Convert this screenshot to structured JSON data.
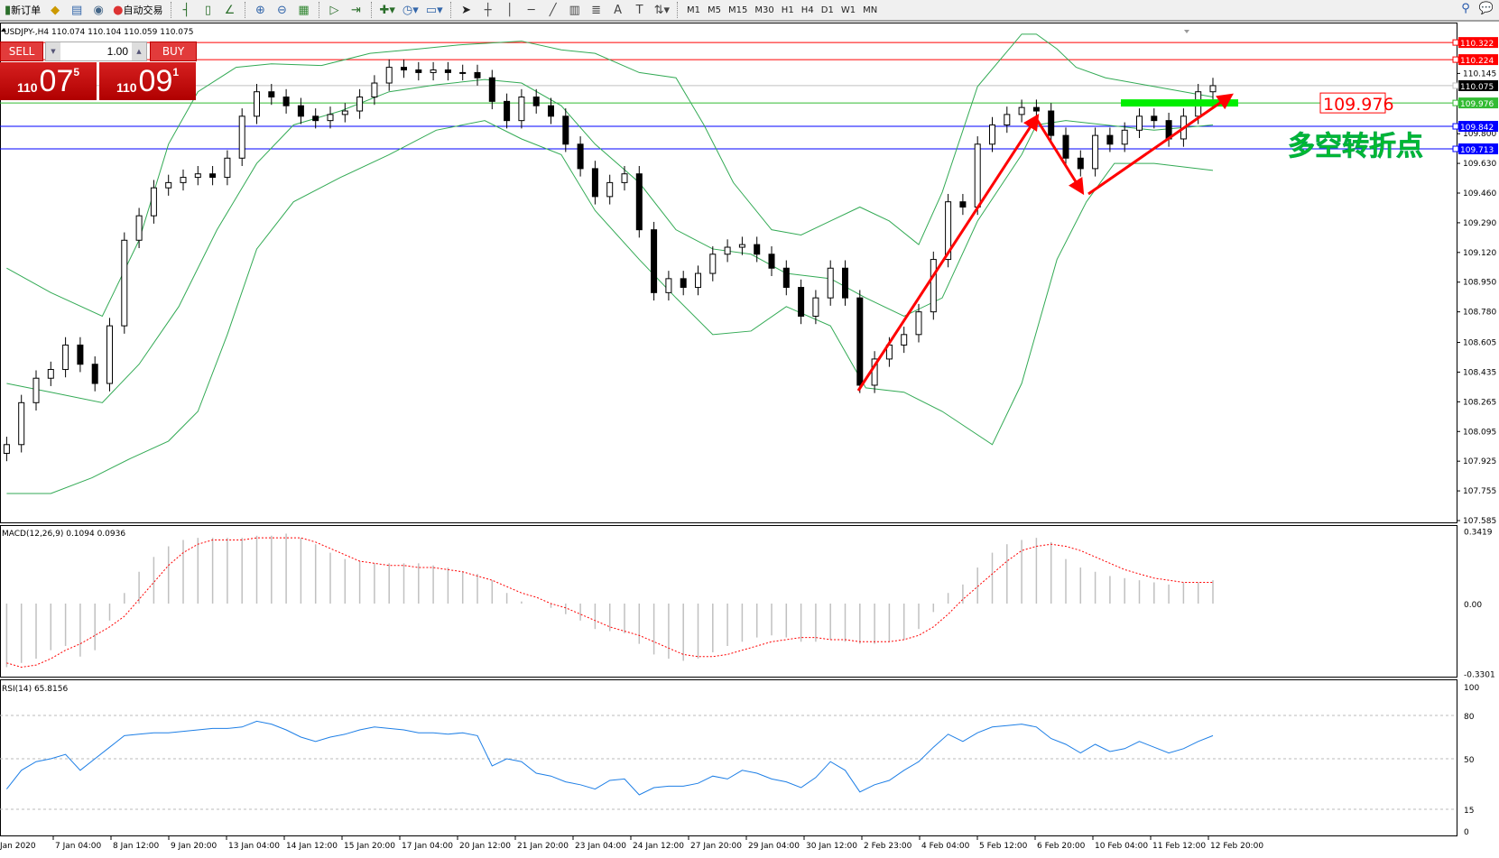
{
  "toolbar": {
    "new_order": "新订单",
    "auto_trading": "自动交易",
    "periods": [
      "M1",
      "M5",
      "M15",
      "M30",
      "H1",
      "H4",
      "D1",
      "W1",
      "MN"
    ],
    "icons": [
      "new-order-icon",
      "history-icon",
      "data-icon",
      "signal-icon",
      "auto-trading-icon",
      "bar-chart-icon",
      "candle-chart-icon",
      "line-chart-icon",
      "zoom-in-icon",
      "zoom-out-icon",
      "tile-icon",
      "autoscroll-icon",
      "shift-icon",
      "indicators-icon",
      "period-icon",
      "template-icon",
      "cursor-icon",
      "crosshair-icon",
      "vertical-line-icon",
      "horizontal-line-icon",
      "trendline-icon",
      "channel-icon",
      "fibonacci-icon",
      "text-icon",
      "label-icon",
      "arrows-icon",
      "search-icon",
      "chat-icon"
    ]
  },
  "chart_header": "USDJPY-,H4  110.074 110.104 110.059 110.075",
  "one_click": {
    "sell": "SELL",
    "buy": "BUY",
    "quantity": "1.00",
    "sell_price": {
      "big": "110",
      "main": "07",
      "pip": "5"
    },
    "buy_price": {
      "big": "110",
      "main": "09",
      "pip": "1"
    }
  },
  "annotation": {
    "price_label": "109.976",
    "text": "多空转折点",
    "text_color": "#00dd00",
    "arrow_color": "#ff0000",
    "zone_color": "#00ee00"
  },
  "chart_data": [
    {
      "type": "candlestick",
      "symbol": "USDJPY-",
      "timeframe": "H4",
      "price_ticks": [
        "110.145",
        "109.800",
        "109.630",
        "109.460",
        "109.290",
        "109.120",
        "108.950",
        "108.780",
        "108.605",
        "108.435",
        "108.265",
        "108.095",
        "107.925",
        "107.755",
        "107.585"
      ],
      "ylim": [
        107.585,
        110.42
      ],
      "hlines": [
        {
          "price": "110.322",
          "color": "#ff0000"
        },
        {
          "price": "110.224",
          "color": "#ff0000"
        },
        {
          "price": "110.075",
          "color": "#c0c0c0",
          "label_bg": "#000000"
        },
        {
          "price": "109.976",
          "color": "#33bb33"
        },
        {
          "price": "109.842",
          "color": "#0000ff"
        },
        {
          "price": "109.713",
          "color": "#0000ff"
        }
      ],
      "close": [
        108.02,
        108.26,
        108.4,
        108.45,
        108.59,
        108.48,
        108.37,
        108.7,
        109.19,
        109.33,
        109.49,
        109.52,
        109.55,
        109.57,
        109.55,
        109.66,
        109.9,
        110.04,
        110.01,
        109.96,
        109.9,
        109.875,
        109.91,
        109.93,
        110.01,
        110.09,
        110.18,
        110.165,
        110.15,
        110.165,
        110.15,
        110.15,
        110.12,
        109.985,
        109.875,
        110.01,
        109.96,
        109.9,
        109.74,
        109.6,
        109.44,
        109.52,
        109.57,
        109.25,
        108.89,
        108.97,
        108.92,
        109.0,
        109.11,
        109.15,
        109.165,
        109.11,
        109.03,
        108.92,
        108.755,
        108.86,
        109.03,
        108.86,
        108.36,
        108.51,
        108.59,
        108.65,
        108.78,
        109.08,
        109.41,
        109.38,
        109.74,
        109.85,
        109.91,
        109.95,
        109.93,
        109.79,
        109.66,
        109.6,
        109.79,
        109.74,
        109.82,
        109.9,
        109.875,
        109.77,
        109.9,
        110.04,
        110.075
      ],
      "bollinger": {
        "color": "#33aa55",
        "upper": [
          [
            0,
            109.03
          ],
          [
            3,
            108.89
          ],
          [
            6.5,
            108.755
          ],
          [
            9,
            109.19
          ],
          [
            11,
            109.74
          ],
          [
            13,
            110.04
          ],
          [
            15.6,
            110.18
          ],
          [
            18,
            110.2
          ],
          [
            21.4,
            110.19
          ],
          [
            24.7,
            110.26
          ],
          [
            28,
            110.285
          ],
          [
            31,
            110.31
          ],
          [
            35,
            110.33
          ],
          [
            37.7,
            110.28
          ],
          [
            40,
            110.26
          ],
          [
            43,
            110.15
          ],
          [
            45.5,
            110.12
          ],
          [
            47.4,
            109.85
          ],
          [
            49.4,
            109.52
          ],
          [
            52,
            109.25
          ],
          [
            54,
            109.22
          ],
          [
            56,
            109.3
          ],
          [
            58,
            109.38
          ],
          [
            60,
            109.3
          ],
          [
            62,
            109.165
          ],
          [
            63.6,
            109.465
          ],
          [
            66,
            110.07
          ],
          [
            69,
            110.37
          ],
          [
            70,
            110.37
          ],
          [
            71.4,
            110.285
          ],
          [
            72.7,
            110.18
          ],
          [
            74.7,
            110.12
          ],
          [
            78,
            110.07
          ],
          [
            82,
            110.01
          ]
        ],
        "middle": [
          [
            0,
            108.37
          ],
          [
            3,
            108.32
          ],
          [
            6.5,
            108.26
          ],
          [
            9,
            108.48
          ],
          [
            11.7,
            108.81
          ],
          [
            14.3,
            109.25
          ],
          [
            17,
            109.63
          ],
          [
            19.5,
            109.85
          ],
          [
            22.7,
            109.93
          ],
          [
            26,
            110.04
          ],
          [
            29.2,
            110.08
          ],
          [
            32.5,
            110.11
          ],
          [
            35,
            110.09
          ],
          [
            37.7,
            109.96
          ],
          [
            40,
            109.74
          ],
          [
            43,
            109.52
          ],
          [
            45.5,
            109.25
          ],
          [
            48,
            109.14
          ],
          [
            50.6,
            109.11
          ],
          [
            53,
            109.0
          ],
          [
            56,
            108.97
          ],
          [
            58.4,
            108.86
          ],
          [
            61,
            108.755
          ],
          [
            63.6,
            108.86
          ],
          [
            66,
            109.3
          ],
          [
            69,
            109.68
          ],
          [
            70,
            109.85
          ],
          [
            72,
            109.875
          ],
          [
            74.7,
            109.85
          ],
          [
            78,
            109.82
          ],
          [
            82,
            109.85
          ]
        ],
        "lower": [
          [
            0,
            107.74
          ],
          [
            3,
            107.74
          ],
          [
            5.8,
            107.83
          ],
          [
            8.4,
            107.94
          ],
          [
            11,
            108.04
          ],
          [
            13,
            108.21
          ],
          [
            15,
            108.65
          ],
          [
            17,
            109.14
          ],
          [
            19.5,
            109.41
          ],
          [
            22.7,
            109.55
          ],
          [
            26,
            109.68
          ],
          [
            29.2,
            109.82
          ],
          [
            32.5,
            109.875
          ],
          [
            35,
            109.77
          ],
          [
            37.7,
            109.68
          ],
          [
            40,
            109.36
          ],
          [
            43,
            109.08
          ],
          [
            45.5,
            108.86
          ],
          [
            48,
            108.65
          ],
          [
            50.6,
            108.67
          ],
          [
            53,
            108.81
          ],
          [
            56,
            108.7
          ],
          [
            58.4,
            108.345
          ],
          [
            61,
            108.32
          ],
          [
            63.6,
            108.21
          ],
          [
            67,
            108.02
          ],
          [
            69,
            108.37
          ],
          [
            71.4,
            109.08
          ],
          [
            73.4,
            109.41
          ],
          [
            75.3,
            109.63
          ],
          [
            78,
            109.63
          ],
          [
            82,
            109.59
          ]
        ]
      },
      "x_ticks": [
        "Jan 2020",
        "7 Jan 04:00",
        "8 Jan 12:00",
        "9 Jan 20:00",
        "13 Jan 04:00",
        "14 Jan 12:00",
        "15 Jan 20:00",
        "17 Jan 04:00",
        "20 Jan 12:00",
        "21 Jan 20:00",
        "23 Jan 04:00",
        "24 Jan 12:00",
        "27 Jan 20:00",
        "29 Jan 04:00",
        "30 Jan 12:00",
        "2 Feb 23:00",
        "4 Feb 04:00",
        "5 Feb 12:00",
        "6 Feb 20:00",
        "10 Feb 04:00",
        "11 Feb 12:00",
        "12 Feb 20:00"
      ]
    },
    {
      "type": "bar",
      "title": "MACD(12,26,9) 0.1094 0.0936",
      "y_ticks": [
        "0.3419",
        "0.00",
        "-0.3301"
      ],
      "ylim": [
        -0.3301,
        0.3419
      ],
      "hist_color": "#c0c0c0",
      "signal_color": "#ff0000",
      "histogram": [
        -0.3,
        -0.28,
        -0.26,
        -0.22,
        -0.2,
        -0.25,
        -0.22,
        -0.08,
        0.05,
        0.15,
        0.22,
        0.27,
        0.3,
        0.31,
        0.31,
        0.31,
        0.31,
        0.32,
        0.32,
        0.33,
        0.31,
        0.28,
        0.24,
        0.21,
        0.2,
        0.19,
        0.19,
        0.19,
        0.19,
        0.18,
        0.17,
        0.15,
        0.14,
        0.11,
        0.05,
        0.01,
        0.0,
        -0.02,
        -0.05,
        -0.08,
        -0.12,
        -0.13,
        -0.14,
        -0.19,
        -0.24,
        -0.26,
        -0.27,
        -0.26,
        -0.23,
        -0.2,
        -0.18,
        -0.16,
        -0.15,
        -0.16,
        -0.18,
        -0.18,
        -0.17,
        -0.18,
        -0.19,
        -0.19,
        -0.18,
        -0.17,
        -0.12,
        -0.04,
        0.05,
        0.09,
        0.17,
        0.24,
        0.28,
        0.3,
        0.31,
        0.29,
        0.21,
        0.17,
        0.15,
        0.13,
        0.12,
        0.11,
        0.1,
        0.09,
        0.1,
        0.1,
        0.11
      ],
      "signal": [
        -0.28,
        -0.3,
        -0.29,
        -0.26,
        -0.22,
        -0.19,
        -0.15,
        -0.11,
        -0.06,
        0.02,
        0.1,
        0.18,
        0.24,
        0.28,
        0.3,
        0.3,
        0.3,
        0.31,
        0.31,
        0.31,
        0.31,
        0.29,
        0.26,
        0.23,
        0.2,
        0.19,
        0.18,
        0.18,
        0.17,
        0.17,
        0.16,
        0.15,
        0.13,
        0.11,
        0.08,
        0.05,
        0.03,
        0.0,
        -0.02,
        -0.05,
        -0.08,
        -0.11,
        -0.13,
        -0.15,
        -0.18,
        -0.21,
        -0.24,
        -0.25,
        -0.25,
        -0.24,
        -0.22,
        -0.2,
        -0.18,
        -0.17,
        -0.16,
        -0.16,
        -0.17,
        -0.17,
        -0.18,
        -0.18,
        -0.18,
        -0.17,
        -0.15,
        -0.11,
        -0.05,
        0.02,
        0.08,
        0.14,
        0.2,
        0.25,
        0.27,
        0.28,
        0.27,
        0.25,
        0.22,
        0.19,
        0.16,
        0.14,
        0.12,
        0.11,
        0.1,
        0.1,
        0.1
      ]
    },
    {
      "type": "line",
      "title": "RSI(14) 65.8156",
      "y_ticks": [
        "100",
        "80",
        "50",
        "15",
        "0"
      ],
      "levels": [
        80,
        50,
        15
      ],
      "ylim": [
        0,
        100
      ],
      "color": "#1e7fe6",
      "values": [
        29,
        42,
        48,
        50,
        53,
        42,
        50,
        58,
        66,
        67,
        68,
        68,
        69,
        70,
        71,
        71,
        72,
        76,
        74,
        70,
        65,
        62,
        65,
        67,
        70,
        72,
        71,
        70,
        68,
        68,
        67,
        68,
        66,
        45,
        50,
        48,
        40,
        38,
        34,
        32,
        29,
        35,
        36,
        25,
        30,
        31,
        31,
        33,
        38,
        36,
        42,
        40,
        36,
        34,
        30,
        37,
        48,
        42,
        27,
        32,
        35,
        42,
        48,
        58,
        67,
        62,
        68,
        72,
        73,
        74,
        72,
        64,
        60,
        54,
        60,
        55,
        57,
        62,
        58,
        54,
        57,
        62,
        66
      ]
    }
  ]
}
